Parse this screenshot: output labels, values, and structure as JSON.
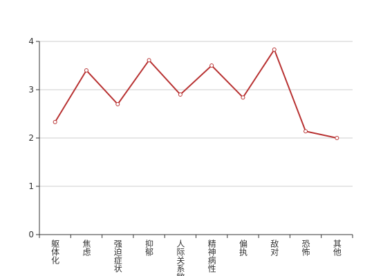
{
  "chart_data": {
    "type": "line",
    "categories": [
      "躯体化",
      "焦虑",
      "强迫症状",
      "抑郁",
      "人际关系敏感",
      "精神病性",
      "偏执",
      "敌对",
      "恐怖",
      "其他"
    ],
    "series": [
      {
        "color": "#b83232",
        "values": [
          2.33,
          3.4,
          2.7,
          3.61,
          2.9,
          3.5,
          2.84,
          3.83,
          2.14,
          2.0
        ]
      }
    ],
    "ylim": [
      0,
      4
    ],
    "yticks": [
      0,
      1,
      2,
      3,
      4
    ],
    "grid": true
  }
}
